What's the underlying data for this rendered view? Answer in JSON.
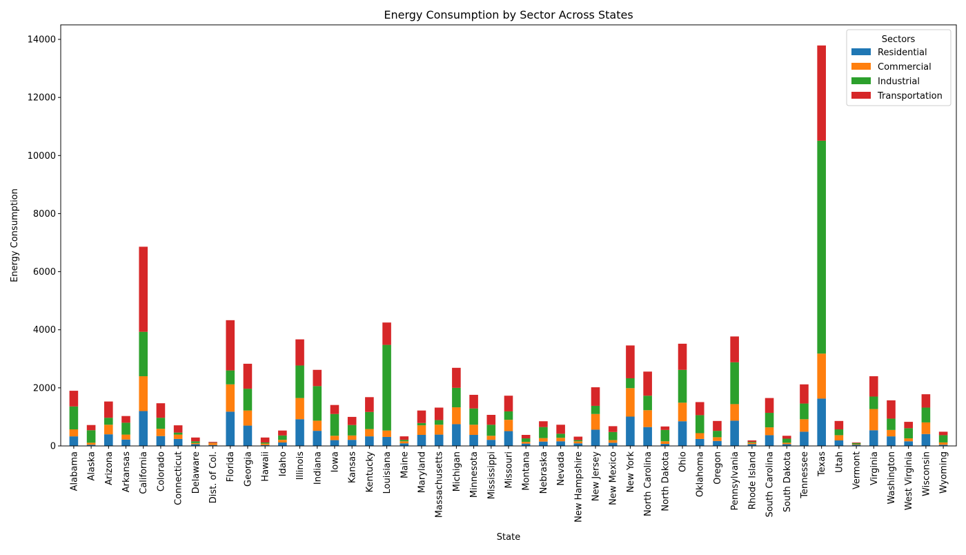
{
  "chart_data": {
    "type": "bar",
    "stacked": true,
    "title": "Energy Consumption by Sector Across States",
    "xlabel": "State",
    "ylabel": "Energy Consumption",
    "ylim": [
      0,
      14500
    ],
    "yticks": [
      0,
      2000,
      4000,
      6000,
      8000,
      10000,
      12000,
      14000
    ],
    "grid": false,
    "legend": {
      "title": "Sectors",
      "placement": "top-right"
    },
    "categories": [
      "Alabama",
      "Alaska",
      "Arizona",
      "Arkansas",
      "California",
      "Colorado",
      "Connecticut",
      "Delaware",
      "Dist. of Col.",
      "Florida",
      "Georgia",
      "Hawaii",
      "Idaho",
      "Illinois",
      "Indiana",
      "Iowa",
      "Kansas",
      "Kentucky",
      "Louisiana",
      "Maine",
      "Maryland",
      "Massachusetts",
      "Michigan",
      "Minnesota",
      "Mississippi",
      "Missouri",
      "Montana",
      "Nebraska",
      "Nevada",
      "New Hampshire",
      "New Jersey",
      "New Mexico",
      "New York",
      "North Carolina",
      "North Dakota",
      "Ohio",
      "Oklahoma",
      "Oregon",
      "Pennsylvania",
      "Rhode Island",
      "South Carolina",
      "South Dakota",
      "Tennessee",
      "Texas",
      "Utah",
      "Vermont",
      "Virginia",
      "Washington",
      "West Virginia",
      "Wisconsin",
      "Wyoming"
    ],
    "series": [
      {
        "name": "Residential",
        "color": "#1f77b4",
        "values": [
          330,
          40,
          400,
          220,
          1200,
          340,
          240,
          60,
          30,
          1180,
          700,
          30,
          120,
          920,
          520,
          200,
          210,
          330,
          310,
          90,
          380,
          390,
          750,
          380,
          210,
          510,
          80,
          150,
          160,
          90,
          560,
          110,
          1010,
          650,
          70,
          850,
          240,
          170,
          870,
          60,
          370,
          60,
          490,
          1630,
          190,
          40,
          540,
          330,
          160,
          410,
          40
        ]
      },
      {
        "name": "Commercial",
        "color": "#ff7f0e",
        "values": [
          240,
          70,
          330,
          170,
          1200,
          250,
          150,
          40,
          70,
          940,
          520,
          50,
          90,
          730,
          350,
          150,
          150,
          250,
          220,
          70,
          330,
          340,
          580,
          350,
          140,
          390,
          60,
          120,
          120,
          70,
          540,
          90,
          980,
          580,
          90,
          640,
          200,
          130,
          570,
          50,
          270,
          50,
          430,
          1550,
          180,
          20,
          730,
          220,
          100,
          400,
          80
        ]
      },
      {
        "name": "Industrial",
        "color": "#2ca02c",
        "values": [
          790,
          430,
          240,
          410,
          1530,
          380,
          70,
          60,
          10,
          480,
          750,
          40,
          150,
          1120,
          1190,
          750,
          360,
          590,
          2950,
          50,
          80,
          160,
          670,
          560,
          380,
          290,
          120,
          380,
          140,
          40,
          280,
          280,
          340,
          500,
          390,
          1130,
          620,
          220,
          1440,
          30,
          500,
          140,
          540,
          7330,
          200,
          40,
          430,
          390,
          350,
          510,
          250
        ]
      },
      {
        "name": "Transportation",
        "color": "#d62728",
        "values": [
          540,
          180,
          560,
          230,
          2930,
          500,
          250,
          130,
          30,
          1730,
          860,
          170,
          170,
          900,
          560,
          310,
          280,
          510,
          770,
          120,
          430,
          430,
          690,
          470,
          340,
          540,
          120,
          200,
          310,
          120,
          640,
          200,
          1130,
          830,
          120,
          900,
          450,
          340,
          890,
          50,
          510,
          100,
          660,
          3280,
          290,
          20,
          700,
          630,
          220,
          460,
          120
        ]
      }
    ]
  }
}
